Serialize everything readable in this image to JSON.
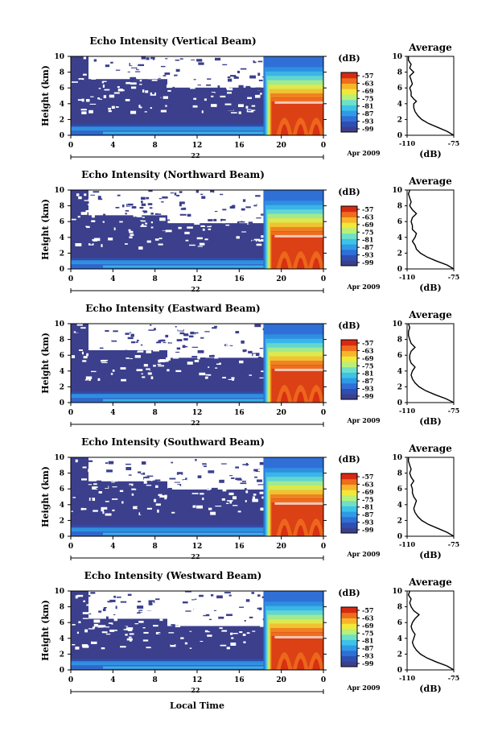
{
  "figure": {
    "bottom_xlabel": "Local Time",
    "date_label": "Apr 2009",
    "day_label": "22",
    "colorbar_unit": "(dB)",
    "avg_title": "Average",
    "avg_xlabel": "(dB)"
  },
  "colors": {
    "background_fill": "#3b3f8c",
    "colormap": [
      "#3b3f8c",
      "#2f4fb0",
      "#2f6fd6",
      "#2f9ae6",
      "#3dc2e8",
      "#6fe0c8",
      "#b7f07a",
      "#f0e83a",
      "#f7b52a",
      "#ef6d1c",
      "#d62a12"
    ]
  },
  "chart_data": [
    {
      "type": "heatmap",
      "title": "Echo Intensity (Vertical Beam)",
      "ylabel": "Height (km)",
      "x_ticks": [
        "0",
        "4",
        "8",
        "12",
        "16",
        "20",
        "0"
      ],
      "y_ticks": [
        "0",
        "2",
        "4",
        "6",
        "8",
        "10"
      ],
      "xlim": [
        0,
        24
      ],
      "ylim": [
        0,
        10
      ],
      "colorbar_ticks": [
        "-57",
        "-63",
        "-69",
        "-75",
        "-81",
        "-87",
        "-93",
        "-99"
      ],
      "avg_profile": {
        "xlim": [
          -110,
          -75
        ],
        "x_ticks": [
          "-110",
          "-75"
        ],
        "y_ticks": [
          "0",
          "2",
          "4",
          "6",
          "8",
          "10"
        ],
        "height": [
          0,
          0.5,
          1,
          1.5,
          2,
          2.5,
          3,
          3.5,
          4,
          4.3,
          4.6,
          5,
          5.5,
          6,
          6.5,
          7,
          7.5,
          8,
          8.5,
          9,
          9.5,
          10
        ],
        "value": [
          -75,
          -80,
          -87,
          -94,
          -99,
          -102,
          -104,
          -105,
          -105,
          -103,
          -105,
          -107,
          -107,
          -108,
          -106,
          -107,
          -108,
          -105,
          -108,
          -107,
          -109,
          -109
        ]
      }
    },
    {
      "type": "heatmap",
      "title": "Echo Intensity (Northward Beam)",
      "ylabel": "Height (km)",
      "x_ticks": [
        "0",
        "4",
        "8",
        "12",
        "16",
        "20",
        "0"
      ],
      "y_ticks": [
        "0",
        "2",
        "4",
        "6",
        "8",
        "10"
      ],
      "xlim": [
        0,
        24
      ],
      "ylim": [
        0,
        10
      ],
      "colorbar_ticks": [
        "-57",
        "-63",
        "-69",
        "-75",
        "-81",
        "-87",
        "-93",
        "-99"
      ],
      "avg_profile": {
        "xlim": [
          -110,
          -75
        ],
        "x_ticks": [
          "-110",
          "-75"
        ],
        "y_ticks": [
          "0",
          "2",
          "4",
          "6",
          "8",
          "10"
        ],
        "height": [
          0,
          0.5,
          1,
          1.5,
          2,
          2.5,
          3,
          3.5,
          4,
          4.5,
          5,
          5.5,
          6,
          6.5,
          7,
          7.5,
          8,
          8.5,
          9,
          9.5,
          10
        ],
        "value": [
          -75,
          -80,
          -88,
          -95,
          -100,
          -103,
          -104,
          -106,
          -104,
          -103,
          -106,
          -106,
          -107,
          -106,
          -103,
          -106,
          -108,
          -107,
          -108,
          -109,
          -108
        ]
      }
    },
    {
      "type": "heatmap",
      "title": "Echo Intensity (Eastward Beam)",
      "ylabel": "Height (km)",
      "x_ticks": [
        "0",
        "4",
        "8",
        "12",
        "16",
        "20",
        "0"
      ],
      "y_ticks": [
        "0",
        "2",
        "4",
        "6",
        "8",
        "10"
      ],
      "xlim": [
        0,
        24
      ],
      "ylim": [
        0,
        10
      ],
      "colorbar_ticks": [
        "-57",
        "-63",
        "-69",
        "-75",
        "-81",
        "-87",
        "-93",
        "-99"
      ],
      "avg_profile": {
        "xlim": [
          -110,
          -75
        ],
        "x_ticks": [
          "-110",
          "-75"
        ],
        "y_ticks": [
          "0",
          "2",
          "4",
          "6",
          "8",
          "10"
        ],
        "height": [
          0,
          0.5,
          1,
          1.5,
          2,
          2.5,
          3,
          3.5,
          4,
          4.5,
          5,
          5.5,
          6,
          6.5,
          7,
          7.5,
          8,
          8.5,
          9,
          9.5,
          10
        ],
        "value": [
          -75,
          -81,
          -89,
          -96,
          -101,
          -104,
          -106,
          -107,
          -106,
          -104,
          -107,
          -108,
          -108,
          -107,
          -104,
          -107,
          -108,
          -109,
          -109,
          -108,
          -109
        ]
      }
    },
    {
      "type": "heatmap",
      "title": "Echo Intensity (Southward Beam)",
      "ylabel": "Height (km)",
      "x_ticks": [
        "0",
        "4",
        "8",
        "12",
        "16",
        "20",
        "0"
      ],
      "y_ticks": [
        "0",
        "2",
        "4",
        "6",
        "8",
        "10"
      ],
      "xlim": [
        0,
        24
      ],
      "ylim": [
        0,
        10
      ],
      "colorbar_ticks": [
        "-57",
        "-63",
        "-69",
        "-75",
        "-81",
        "-87",
        "-93",
        "-99"
      ],
      "avg_profile": {
        "xlim": [
          -110,
          -75
        ],
        "x_ticks": [
          "-110",
          "-75"
        ],
        "y_ticks": [
          "0",
          "2",
          "4",
          "6",
          "8",
          "10"
        ],
        "height": [
          0,
          0.5,
          1,
          1.5,
          2,
          2.5,
          3,
          3.5,
          4,
          4.5,
          5,
          5.5,
          6,
          6.5,
          7,
          7.5,
          8,
          8.5,
          9,
          9.5,
          10
        ],
        "value": [
          -75,
          -80,
          -87,
          -94,
          -99,
          -102,
          -104,
          -105,
          -104,
          -103,
          -105,
          -106,
          -106,
          -107,
          -105,
          -107,
          -108,
          -107,
          -108,
          -109,
          -109
        ]
      }
    },
    {
      "type": "heatmap",
      "title": "Echo Intensity (Westward Beam)",
      "ylabel": "Height (km)",
      "x_ticks": [
        "0",
        "4",
        "8",
        "12",
        "16",
        "20",
        "0"
      ],
      "y_ticks": [
        "0",
        "2",
        "4",
        "6",
        "8",
        "10"
      ],
      "xlim": [
        0,
        24
      ],
      "ylim": [
        0,
        10
      ],
      "colorbar_ticks": [
        "-57",
        "-63",
        "-69",
        "-75",
        "-81",
        "-87",
        "-93",
        "-99"
      ],
      "avg_profile": {
        "xlim": [
          -110,
          -75
        ],
        "x_ticks": [
          "-110",
          "-75"
        ],
        "y_ticks": [
          "0",
          "2",
          "4",
          "6",
          "8",
          "10"
        ],
        "height": [
          0,
          0.5,
          1,
          1.5,
          2,
          2.5,
          3,
          3.5,
          4,
          4.5,
          5,
          5.5,
          6,
          6.5,
          7,
          7.5,
          8,
          8.5,
          9,
          9.5,
          10
        ],
        "value": [
          -75,
          -80,
          -88,
          -95,
          -100,
          -103,
          -105,
          -106,
          -105,
          -104,
          -106,
          -107,
          -106,
          -104,
          -101,
          -105,
          -107,
          -108,
          -107,
          -109,
          -108
        ]
      }
    }
  ]
}
